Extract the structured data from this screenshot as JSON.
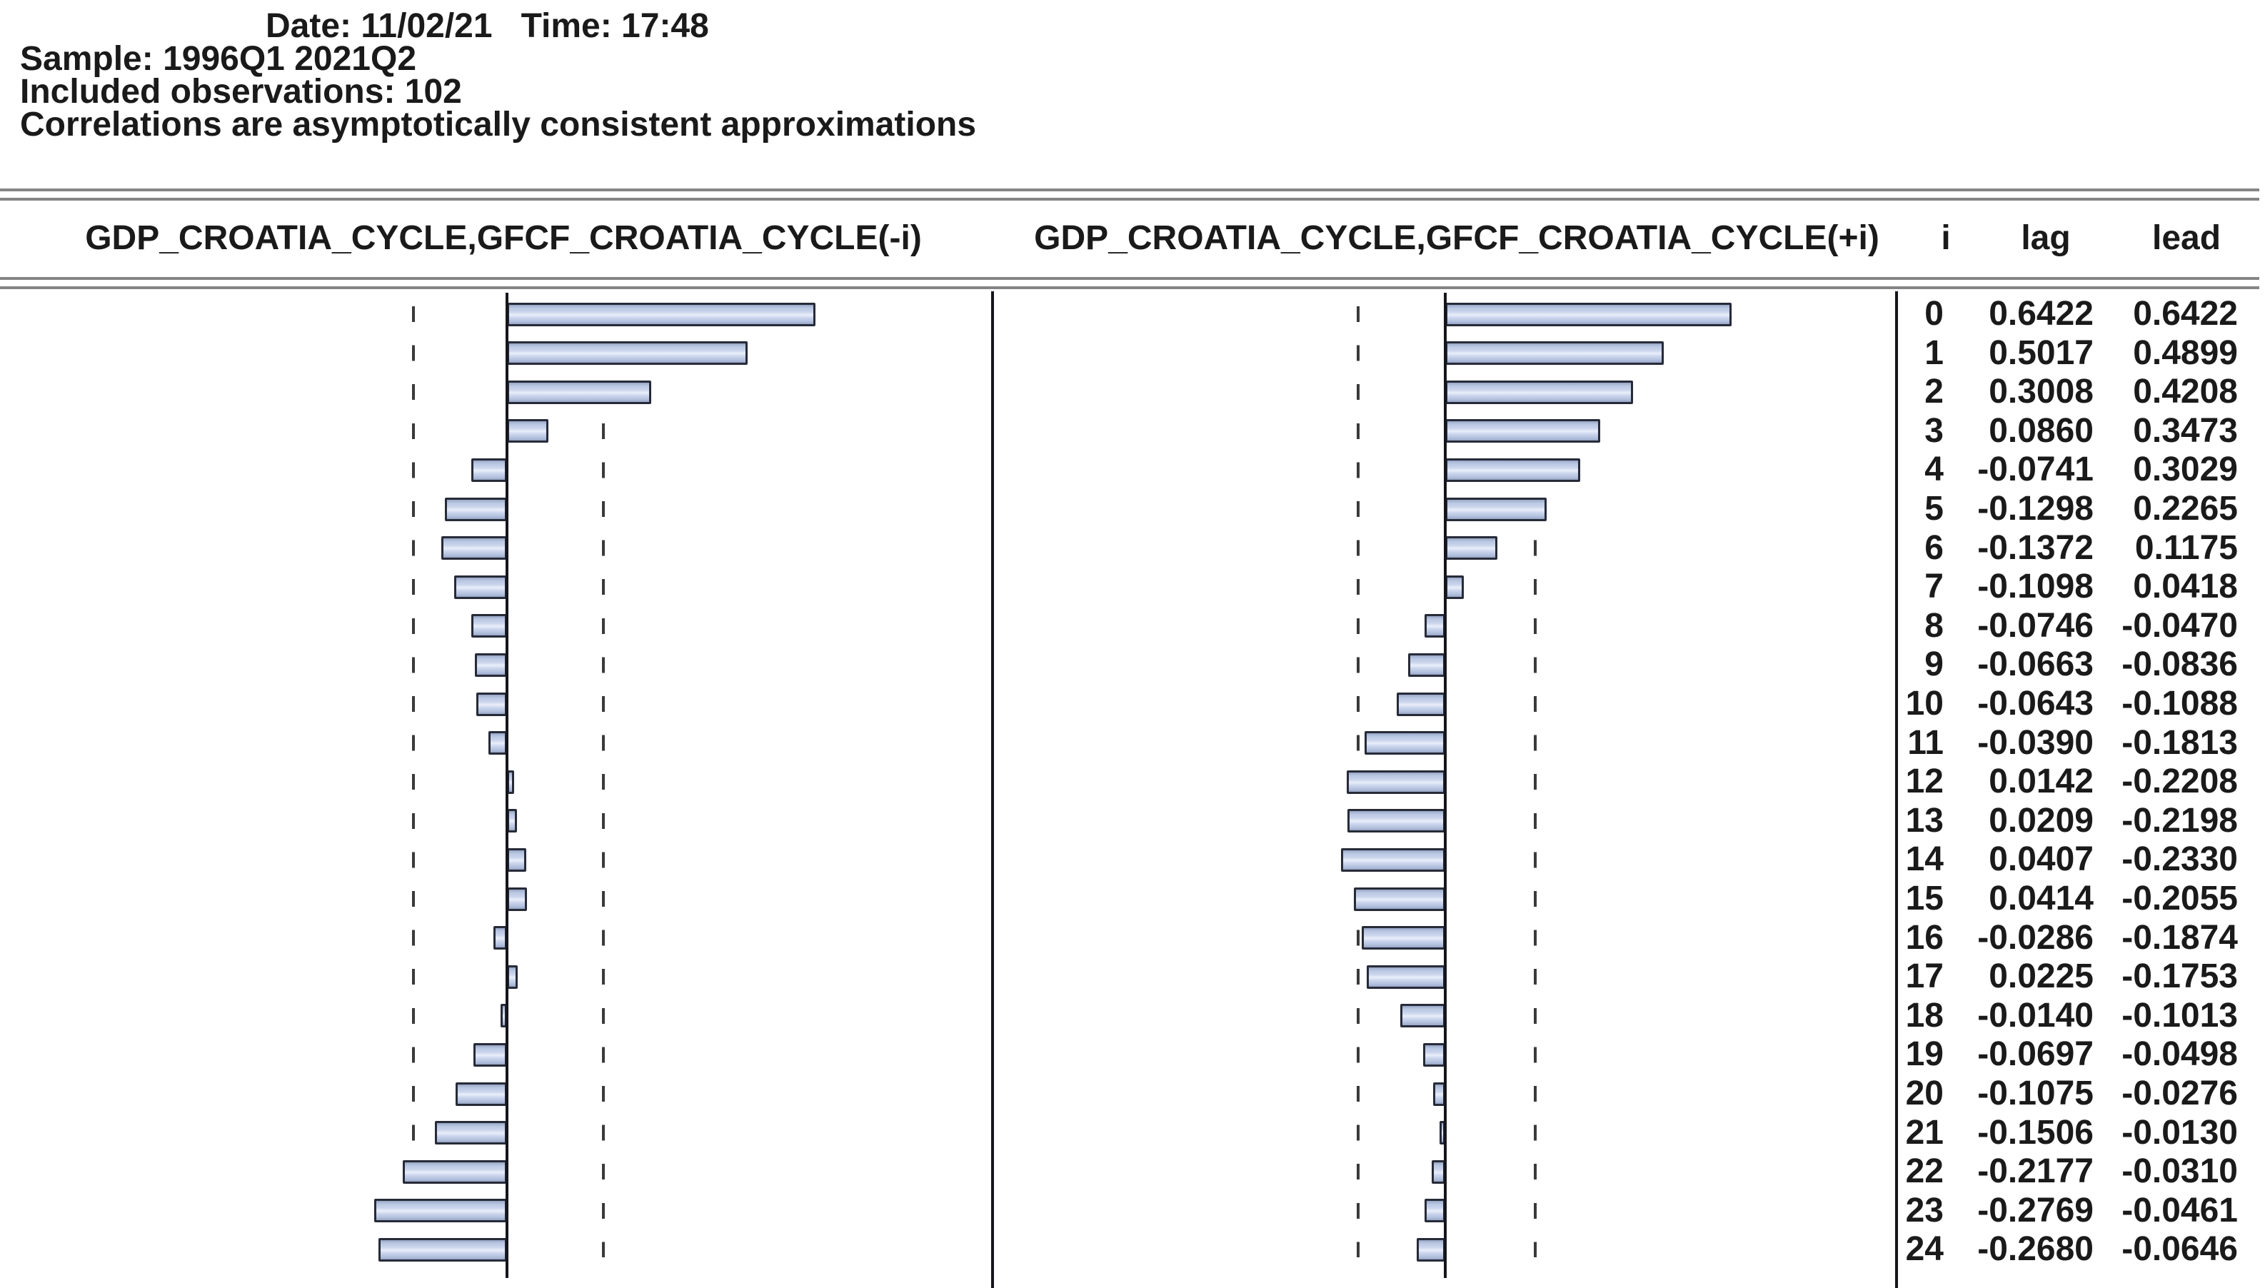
{
  "meta": {
    "date_time_line": "Date: 11/02/21   Time: 17:48",
    "sample_line": "Sample: 1996Q1 2021Q2",
    "observations_line": "Included observations: 102",
    "note_line": "Correlations are asymptotically consistent approximations"
  },
  "headers": {
    "lag_panel": "GDP_CROATIA_CYCLE,GFCF_CROATIA_CYCLE(-i)",
    "lead_panel": "GDP_CROATIA_CYCLE,GFCF_CROATIA_CYCLE(+i)",
    "col_i": "i",
    "col_lag": "lag",
    "col_lead": "lead"
  },
  "chart_data": {
    "type": "bar",
    "orientation": "horizontal",
    "title_left": "GDP_CROATIA_CYCLE,GFCF_CROATIA_CYCLE(-i)",
    "title_right": "GDP_CROATIA_CYCLE,GFCF_CROATIA_CYCLE(+i)",
    "categories_i": [
      0,
      1,
      2,
      3,
      4,
      5,
      6,
      7,
      8,
      9,
      10,
      11,
      12,
      13,
      14,
      15,
      16,
      17,
      18,
      19,
      20,
      21,
      22,
      23,
      24
    ],
    "series": [
      {
        "name": "lag",
        "values": [
          0.6422,
          0.5017,
          0.3008,
          0.086,
          -0.0741,
          -0.1298,
          -0.1372,
          -0.1098,
          -0.0746,
          -0.0663,
          -0.0643,
          -0.039,
          0.0142,
          0.0209,
          0.0407,
          0.0414,
          -0.0286,
          0.0225,
          -0.014,
          -0.0697,
          -0.1075,
          -0.1506,
          -0.2177,
          -0.2769,
          -0.268
        ]
      },
      {
        "name": "lead",
        "values": [
          0.6422,
          0.4899,
          0.4208,
          0.3473,
          0.3029,
          0.2265,
          0.1175,
          0.0418,
          -0.047,
          -0.0836,
          -0.1088,
          -0.1813,
          -0.2208,
          -0.2198,
          -0.233,
          -0.2055,
          -0.1874,
          -0.1753,
          -0.1013,
          -0.0498,
          -0.0276,
          -0.013,
          -0.031,
          -0.0461,
          -0.0646
        ]
      }
    ],
    "confidence_band": 0.198,
    "zero_line": true,
    "dashed_confidence_lines": true,
    "grid": false,
    "legend": false,
    "decimals": 4
  },
  "style": {
    "bar_fill": "#c9d4ec",
    "bar_highlight": "#e9eef9",
    "bar_shade": "#97a6c6",
    "bar_border": "#272b38",
    "zero_line_color": "#15151c",
    "dash_color": "#3a3a3a",
    "rule_color": "#858585",
    "text_color": "#1a1a1a"
  }
}
